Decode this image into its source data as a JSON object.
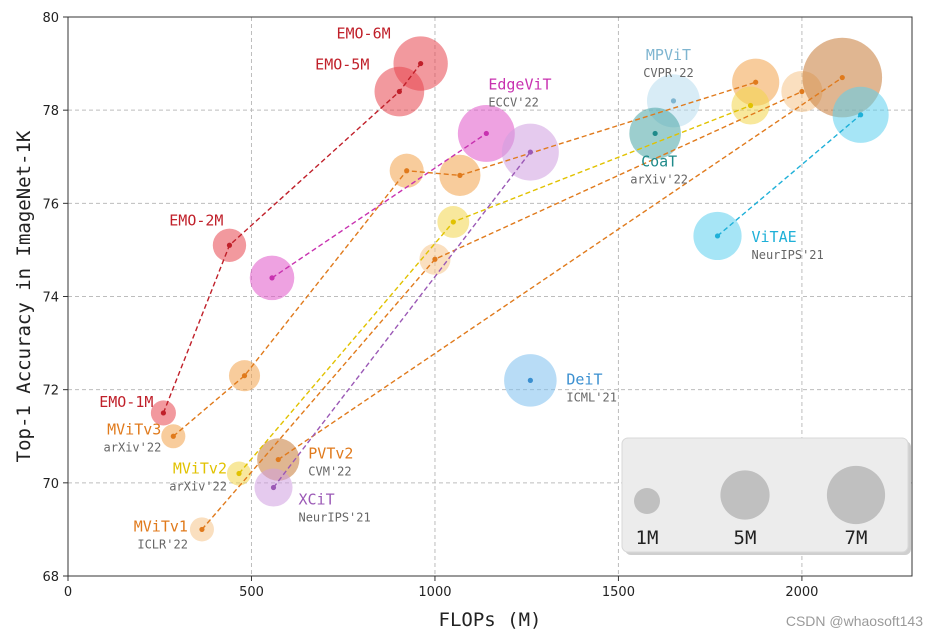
{
  "chart_data": {
    "type": "scatter",
    "title": "",
    "xlabel": "FLOPs (M)",
    "ylabel": "Top-1 Accuracy in ImageNet-1K",
    "xlim": [
      0,
      2300
    ],
    "ylim": [
      68,
      80
    ],
    "xticks": [
      0,
      500,
      1000,
      1500,
      2000
    ],
    "yticks": [
      68,
      70,
      72,
      74,
      76,
      78,
      80
    ],
    "grid": true,
    "size_legend": {
      "placement": "bottom-right",
      "entries": [
        {
          "label": "1M",
          "params": 1
        },
        {
          "label": "5M",
          "params": 5
        },
        {
          "label": "7M",
          "params": 7
        }
      ]
    },
    "series": [
      {
        "name": "EMO",
        "color": "#e8454f",
        "label_color": "#c0202a",
        "params": [
          1.3,
          2.3,
          5.1,
          6.1
        ],
        "x": [
          260,
          440,
          903,
          961
        ],
        "y": [
          71.5,
          75.1,
          78.4,
          79.0
        ],
        "point_labels": [
          "EMO-1M",
          "EMO-2M",
          "EMO-5M",
          "EMO-6M"
        ],
        "venue": ""
      },
      {
        "name": "EdgeViT",
        "color": "#e055c8",
        "label_color": "#c832b0",
        "params": [
          4.1,
          6.7
        ],
        "x": [
          556,
          1140
        ],
        "y": [
          74.4,
          77.5
        ],
        "point_labels": [
          "",
          "EdgeViT"
        ],
        "venue": "ECCV'22"
      },
      {
        "name": "MViTv3",
        "color": "#f3a24a",
        "label_color": "#e07a1c",
        "params": [
          1.2,
          2.0,
          2.4,
          3.5,
          4.6
        ],
        "x": [
          287,
          481,
          923,
          1068,
          1874
        ],
        "y": [
          71.0,
          72.3,
          76.7,
          76.6,
          78.6
        ],
        "point_labels": [
          "MViTv3",
          "",
          "",
          "",
          ""
        ],
        "venue": "arXiv'22"
      },
      {
        "name": "MViTv2",
        "color": "#f2d54a",
        "label_color": "#e1c200",
        "params": [
          1.2,
          2.1,
          3.0
        ],
        "x": [
          466,
          1050,
          1860
        ],
        "y": [
          70.2,
          75.6,
          78.1
        ],
        "point_labels": [
          "MViTv2",
          "",
          ""
        ],
        "venue": "arXiv'22"
      },
      {
        "name": "MViTv1",
        "color": "#f6c48a",
        "label_color": "#e07a1c",
        "params": [
          1.2,
          2.0,
          3.5
        ],
        "x": [
          365,
          1000,
          2000
        ],
        "y": [
          69.0,
          74.8,
          78.4
        ],
        "point_labels": [
          "MViTv1",
          "",
          ""
        ],
        "venue": "ICLR'22"
      },
      {
        "name": "PVTv2",
        "color": "#c77a36",
        "label_color": "#e07a1c",
        "params": [
          3.7,
          13.1
        ],
        "x": [
          573,
          2110
        ],
        "y": [
          70.5,
          78.7
        ],
        "point_labels": [
          "PVTv2",
          ""
        ],
        "venue": "CVM'22"
      },
      {
        "name": "XCiT",
        "color": "#cf9ee0",
        "label_color": "#9b59b6",
        "params": [
          3.0,
          6.7
        ],
        "x": [
          560,
          1260
        ],
        "y": [
          69.9,
          77.1
        ],
        "point_labels": [
          "XCiT",
          ""
        ],
        "venue": "NeurIPS'21"
      },
      {
        "name": "MPViT",
        "color": "#b8dcee",
        "label_color": "#7fb5d0",
        "params": [
          5.8
        ],
        "x": [
          1650
        ],
        "y": [
          78.2
        ],
        "point_labels": [
          "MPViT"
        ],
        "venue": "CVPR'22"
      },
      {
        "name": "CoaT",
        "color": "#4aa6a6",
        "label_color": "#1f8a8a",
        "params": [
          5.5
        ],
        "x": [
          1600
        ],
        "y": [
          77.5
        ],
        "point_labels": [
          "CoaT"
        ],
        "venue": "arXiv'22"
      },
      {
        "name": "ViTAE",
        "color": "#5cd0ee",
        "label_color": "#1fb0d8",
        "params": [
          4.8,
          6.5
        ],
        "x": [
          1770,
          2160
        ],
        "y": [
          75.3,
          77.9
        ],
        "point_labels": [
          "ViTAE",
          ""
        ],
        "venue": "NeurIPS'21"
      },
      {
        "name": "DeiT",
        "color": "#7ec0ee",
        "label_color": "#3a8fd0",
        "params": [
          5.7
        ],
        "x": [
          1260
        ],
        "y": [
          72.2
        ],
        "point_labels": [
          "DeiT"
        ],
        "venue": "ICML'21"
      }
    ]
  },
  "watermark": "CSDN @whaosoft143"
}
